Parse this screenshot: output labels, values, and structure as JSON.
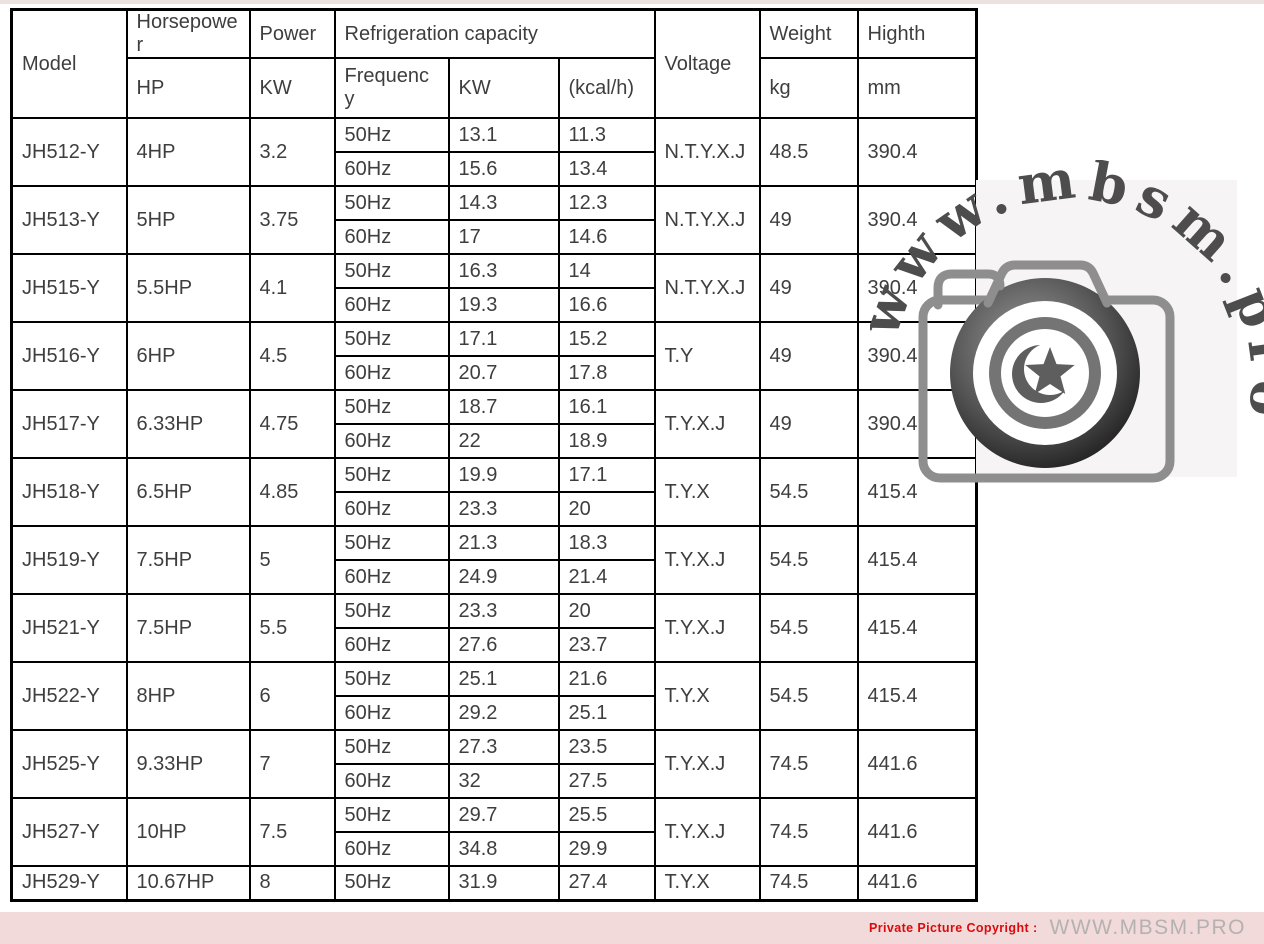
{
  "page": {
    "top_strip_color": "#ece1e1",
    "background": "#ffffff"
  },
  "table": {
    "header": {
      "model": "Model",
      "horsepower": "Horsepower",
      "horsepower_sub": "HP",
      "power": "Power",
      "power_sub": "KW",
      "refrigeration": "Refrigeration capacity",
      "frequency": "Frequency",
      "capacity_kw": "KW",
      "capacity_kcal": "(kcal/h)",
      "voltage": "Voltage",
      "weight": "Weight",
      "weight_sub": "kg",
      "highth": "Highth",
      "highth_sub": "mm"
    },
    "rows": [
      {
        "model": "JH512-Y",
        "hp": "4HP",
        "power": "3.2",
        "freq": [
          {
            "hz": "50Hz",
            "kw": "13.1",
            "kcal": "11.3"
          },
          {
            "hz": "60Hz",
            "kw": "15.6",
            "kcal": "13.4"
          }
        ],
        "voltage": "N.T.Y.X.J",
        "weight": "48.5",
        "height": "390.4"
      },
      {
        "model": "JH513-Y",
        "hp": "5HP",
        "power": "3.75",
        "freq": [
          {
            "hz": "50Hz",
            "kw": "14.3",
            "kcal": "12.3"
          },
          {
            "hz": "60Hz",
            "kw": "17",
            "kcal": "14.6"
          }
        ],
        "voltage": "N.T.Y.X.J",
        "weight": "49",
        "height": "390.4"
      },
      {
        "model": "JH515-Y",
        "hp": "5.5HP",
        "power": "4.1",
        "freq": [
          {
            "hz": "50Hz",
            "kw": "16.3",
            "kcal": "14"
          },
          {
            "hz": "60Hz",
            "kw": "19.3",
            "kcal": "16.6"
          }
        ],
        "voltage": "N.T.Y.X.J",
        "weight": "49",
        "height": "390.4"
      },
      {
        "model": "JH516-Y",
        "hp": "6HP",
        "power": "4.5",
        "freq": [
          {
            "hz": "50Hz",
            "kw": "17.1",
            "kcal": "15.2"
          },
          {
            "hz": "60Hz",
            "kw": "20.7",
            "kcal": "17.8"
          }
        ],
        "voltage": "T.Y",
        "weight": "49",
        "height": "390.4"
      },
      {
        "model": "JH517-Y",
        "hp": "6.33HP",
        "power": "4.75",
        "freq": [
          {
            "hz": "50Hz",
            "kw": "18.7",
            "kcal": "16.1"
          },
          {
            "hz": "60Hz",
            "kw": "22",
            "kcal": "18.9"
          }
        ],
        "voltage": "T.Y.X.J",
        "weight": "49",
        "height": "390.4"
      },
      {
        "model": "JH518-Y",
        "hp": "6.5HP",
        "power": "4.85",
        "freq": [
          {
            "hz": "50Hz",
            "kw": "19.9",
            "kcal": "17.1"
          },
          {
            "hz": "60Hz",
            "kw": "23.3",
            "kcal": "20"
          }
        ],
        "voltage": "T.Y.X",
        "weight": "54.5",
        "height": "415.4"
      },
      {
        "model": "JH519-Y",
        "hp": "7.5HP",
        "power": "5",
        "freq": [
          {
            "hz": "50Hz",
            "kw": "21.3",
            "kcal": "18.3"
          },
          {
            "hz": "60Hz",
            "kw": "24.9",
            "kcal": "21.4"
          }
        ],
        "voltage": "T.Y.X.J",
        "weight": "54.5",
        "height": "415.4"
      },
      {
        "model": "JH521-Y",
        "hp": "7.5HP",
        "power": "5.5",
        "freq": [
          {
            "hz": "50Hz",
            "kw": "23.3",
            "kcal": "20"
          },
          {
            "hz": "60Hz",
            "kw": "27.6",
            "kcal": "23.7"
          }
        ],
        "voltage": "T.Y.X.J",
        "weight": "54.5",
        "height": "415.4"
      },
      {
        "model": "JH522-Y",
        "hp": "8HP",
        "power": "6",
        "freq": [
          {
            "hz": "50Hz",
            "kw": "25.1",
            "kcal": "21.6"
          },
          {
            "hz": "60Hz",
            "kw": "29.2",
            "kcal": "25.1"
          }
        ],
        "voltage": "T.Y.X",
        "weight": "54.5",
        "height": "415.4"
      },
      {
        "model": "JH525-Y",
        "hp": "9.33HP",
        "power": "7",
        "freq": [
          {
            "hz": "50Hz",
            "kw": "27.3",
            "kcal": "23.5"
          },
          {
            "hz": "60Hz",
            "kw": "32",
            "kcal": "27.5"
          }
        ],
        "voltage": "T.Y.X.J",
        "weight": "74.5",
        "height": "441.6"
      },
      {
        "model": "JH527-Y",
        "hp": "10HP",
        "power": "7.5",
        "freq": [
          {
            "hz": "50Hz",
            "kw": "29.7",
            "kcal": "25.5"
          },
          {
            "hz": "60Hz",
            "kw": "34.8",
            "kcal": "29.9"
          }
        ],
        "voltage": "T.Y.X.J",
        "weight": "74.5",
        "height": "441.6"
      },
      {
        "model": "JH529-Y",
        "hp": "10.67HP",
        "power": "8",
        "freq": [
          {
            "hz": "50Hz",
            "kw": "31.9",
            "kcal": "27.4"
          }
        ],
        "voltage": "T.Y.X",
        "weight": "74.5",
        "height": "441.6"
      }
    ]
  },
  "watermark": {
    "arc_text": "www.mbsm.pro",
    "panel_color": "#f6f4f4",
    "camera_icon": "camera-with-crescent-star-lens",
    "text_color": "#4d4d4d"
  },
  "bottom_bar": {
    "background": "#f3dada",
    "copyright_label": "Private Picture Copyright :",
    "copyright_site": "WWW.MBSM.PRO",
    "label_color": "#dc0a0a",
    "site_color": "#b4b1b1"
  }
}
